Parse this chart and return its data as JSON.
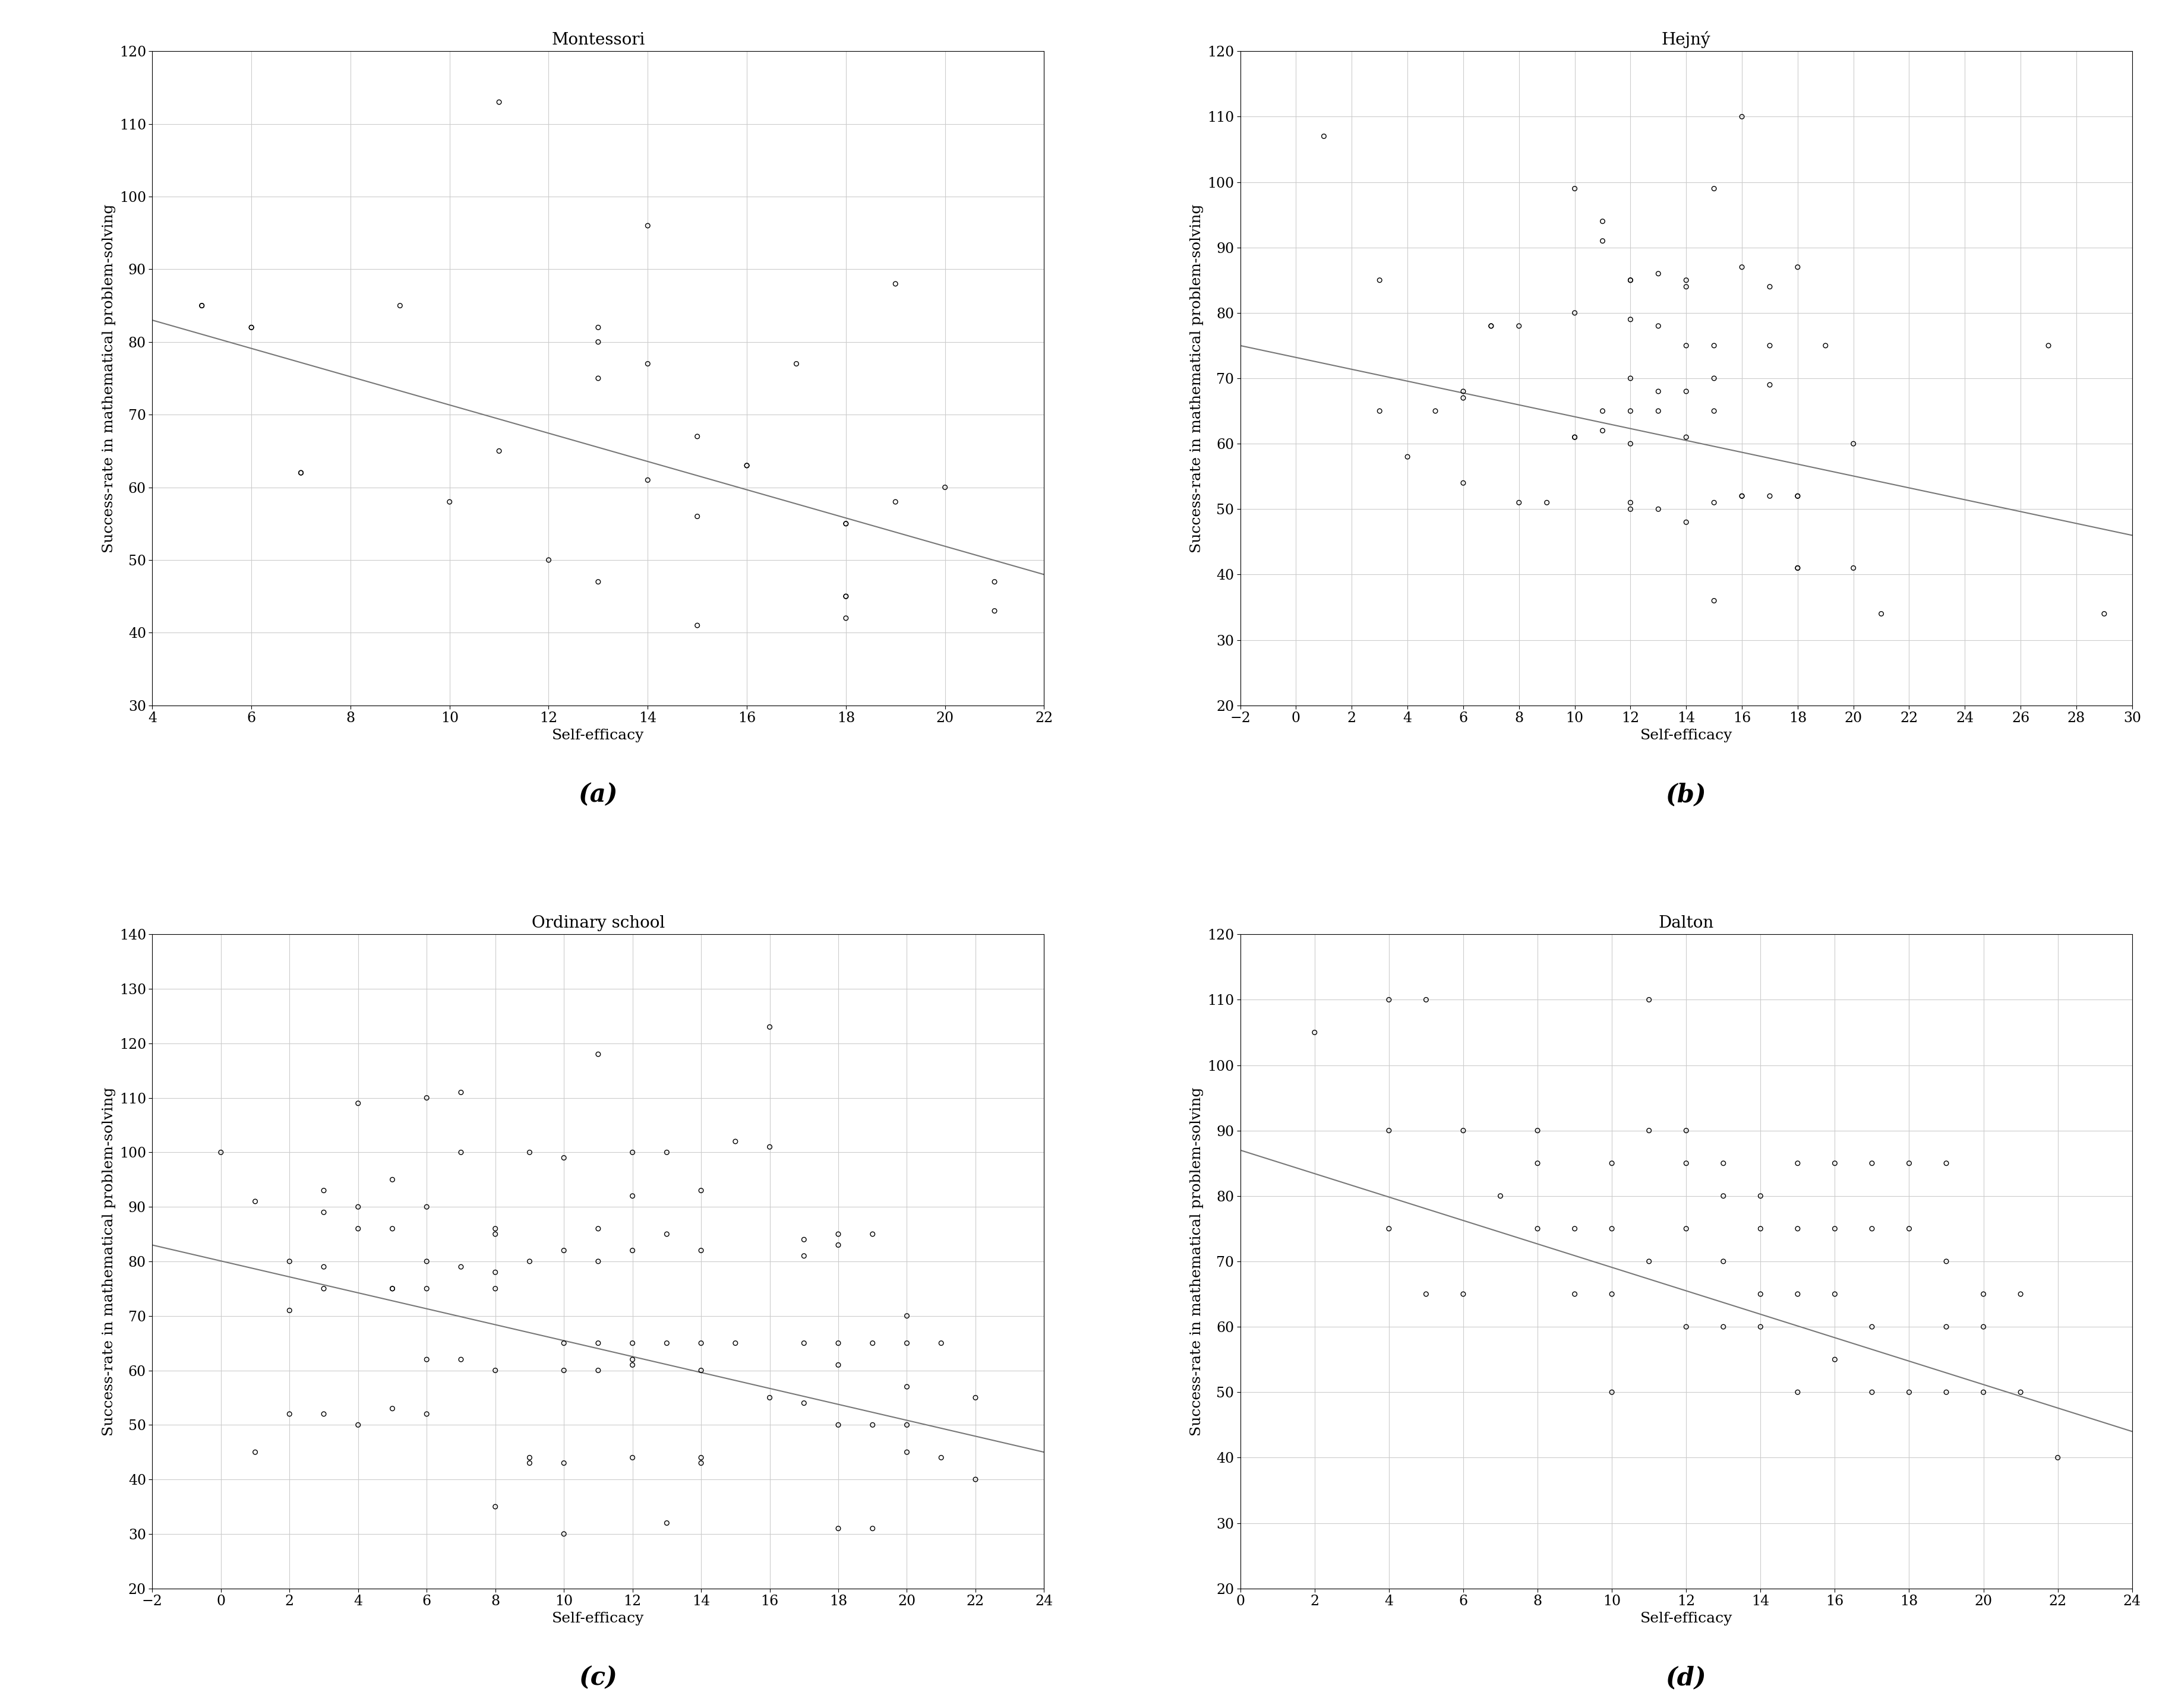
{
  "montessori": {
    "title": "Montessori",
    "x": [
      5,
      5,
      6,
      6,
      7,
      7,
      9,
      10,
      11,
      11,
      12,
      13,
      13,
      13,
      13,
      14,
      14,
      14,
      15,
      15,
      15,
      16,
      16,
      17,
      18,
      18,
      18,
      18,
      18,
      19,
      19,
      20,
      21,
      21
    ],
    "y": [
      85,
      85,
      82,
      82,
      62,
      62,
      85,
      58,
      113,
      65,
      50,
      82,
      80,
      75,
      47,
      96,
      77,
      61,
      67,
      56,
      41,
      63,
      63,
      77,
      55,
      55,
      45,
      45,
      42,
      88,
      58,
      60,
      47,
      43
    ],
    "xlim": [
      4,
      22
    ],
    "ylim": [
      30,
      120
    ],
    "xticks": [
      4,
      6,
      8,
      10,
      12,
      14,
      16,
      18,
      20,
      22
    ],
    "yticks": [
      30,
      40,
      50,
      60,
      70,
      80,
      90,
      100,
      110,
      120
    ],
    "trend_x": [
      4,
      22
    ],
    "trend_y": [
      83,
      48
    ],
    "label": "(a)"
  },
  "hejny": {
    "title": "Hejný",
    "x": [
      1,
      3,
      3,
      4,
      5,
      6,
      6,
      6,
      7,
      7,
      8,
      8,
      9,
      10,
      10,
      10,
      10,
      11,
      11,
      11,
      11,
      12,
      12,
      12,
      12,
      12,
      12,
      12,
      12,
      13,
      13,
      13,
      13,
      13,
      14,
      14,
      14,
      14,
      14,
      14,
      15,
      15,
      15,
      15,
      15,
      15,
      16,
      16,
      16,
      16,
      17,
      17,
      17,
      17,
      18,
      18,
      18,
      18,
      18,
      19,
      20,
      20,
      21,
      27,
      29
    ],
    "y": [
      107,
      85,
      65,
      58,
      65,
      68,
      67,
      54,
      78,
      78,
      78,
      51,
      51,
      99,
      80,
      61,
      61,
      94,
      91,
      65,
      62,
      85,
      85,
      79,
      70,
      65,
      60,
      51,
      50,
      86,
      78,
      68,
      65,
      50,
      85,
      84,
      75,
      68,
      61,
      48,
      99,
      75,
      70,
      65,
      51,
      36,
      110,
      87,
      52,
      52,
      84,
      75,
      69,
      52,
      87,
      52,
      52,
      41,
      41,
      75,
      60,
      41,
      34,
      75,
      34
    ],
    "xlim": [
      -2,
      30
    ],
    "ylim": [
      20,
      120
    ],
    "xticks": [
      -2,
      0,
      2,
      4,
      6,
      8,
      10,
      12,
      14,
      16,
      18,
      20,
      22,
      24,
      26,
      28,
      30
    ],
    "yticks": [
      20,
      30,
      40,
      50,
      60,
      70,
      80,
      90,
      100,
      110,
      120
    ],
    "trend_x": [
      -2,
      30
    ],
    "trend_y": [
      75,
      46
    ],
    "label": "(b)"
  },
  "ordinary": {
    "title": "Ordinary school",
    "x": [
      0,
      1,
      1,
      2,
      2,
      2,
      3,
      3,
      3,
      3,
      3,
      4,
      4,
      4,
      4,
      5,
      5,
      5,
      5,
      5,
      6,
      6,
      6,
      6,
      6,
      6,
      7,
      7,
      7,
      7,
      8,
      8,
      8,
      8,
      8,
      8,
      9,
      9,
      9,
      9,
      10,
      10,
      10,
      10,
      10,
      10,
      11,
      11,
      11,
      11,
      11,
      12,
      12,
      12,
      12,
      12,
      12,
      12,
      13,
      13,
      13,
      13,
      14,
      14,
      14,
      14,
      14,
      14,
      15,
      15,
      16,
      16,
      16,
      17,
      17,
      17,
      17,
      18,
      18,
      18,
      18,
      18,
      18,
      19,
      19,
      19,
      19,
      20,
      20,
      20,
      20,
      20,
      21,
      21,
      22,
      22
    ],
    "y": [
      100,
      91,
      45,
      80,
      71,
      52,
      93,
      89,
      79,
      75,
      52,
      109,
      90,
      86,
      50,
      95,
      86,
      75,
      75,
      53,
      110,
      90,
      80,
      75,
      62,
      52,
      111,
      100,
      79,
      62,
      86,
      85,
      78,
      75,
      60,
      35,
      100,
      80,
      44,
      43,
      99,
      82,
      65,
      60,
      43,
      30,
      118,
      86,
      80,
      65,
      60,
      100,
      92,
      82,
      65,
      62,
      61,
      44,
      100,
      85,
      65,
      32,
      93,
      82,
      65,
      60,
      44,
      43,
      102,
      65,
      123,
      101,
      55,
      84,
      81,
      65,
      54,
      85,
      83,
      65,
      61,
      50,
      31,
      85,
      65,
      50,
      31,
      70,
      65,
      57,
      50,
      45,
      65,
      44,
      55,
      40
    ],
    "xlim": [
      -2,
      24
    ],
    "ylim": [
      20,
      140
    ],
    "xticks": [
      -2,
      0,
      2,
      4,
      6,
      8,
      10,
      12,
      14,
      16,
      18,
      20,
      22,
      24
    ],
    "yticks": [
      20,
      30,
      40,
      50,
      60,
      70,
      80,
      90,
      100,
      110,
      120,
      130,
      140
    ],
    "trend_x": [
      -2,
      24
    ],
    "trend_y": [
      83,
      45
    ],
    "label": "(c)"
  },
  "dalton": {
    "title": "Dalton",
    "x": [
      2,
      4,
      4,
      4,
      5,
      5,
      6,
      6,
      7,
      8,
      8,
      8,
      9,
      9,
      10,
      10,
      10,
      10,
      11,
      11,
      11,
      12,
      12,
      12,
      12,
      13,
      13,
      13,
      13,
      14,
      14,
      14,
      14,
      15,
      15,
      15,
      15,
      16,
      16,
      16,
      16,
      17,
      17,
      17,
      17,
      18,
      18,
      18,
      19,
      19,
      19,
      19,
      20,
      20,
      20,
      21,
      21,
      22
    ],
    "y": [
      105,
      110,
      90,
      75,
      110,
      65,
      90,
      65,
      80,
      90,
      85,
      75,
      75,
      65,
      85,
      75,
      65,
      50,
      110,
      90,
      70,
      90,
      85,
      75,
      60,
      85,
      80,
      70,
      60,
      80,
      75,
      65,
      60,
      85,
      75,
      65,
      50,
      85,
      75,
      65,
      55,
      85,
      75,
      60,
      50,
      85,
      75,
      50,
      85,
      70,
      60,
      50,
      65,
      60,
      50,
      65,
      50,
      40
    ],
    "xlim": [
      0,
      24
    ],
    "ylim": [
      20,
      120
    ],
    "xticks": [
      0,
      2,
      4,
      6,
      8,
      10,
      12,
      14,
      16,
      18,
      20,
      22,
      24
    ],
    "yticks": [
      20,
      30,
      40,
      50,
      60,
      70,
      80,
      90,
      100,
      110,
      120
    ],
    "trend_x": [
      0,
      24
    ],
    "trend_y": [
      87,
      44
    ],
    "label": "(d)"
  },
  "xlabel": "Self-efficacy",
  "ylabel": "Success-rate in mathematical problem-solving",
  "scatter_color": "black",
  "line_color": "#777777",
  "background_color": "white",
  "grid_color": "#cccccc",
  "title_fontsize": 20,
  "label_fontsize": 18,
  "tick_fontsize": 17,
  "caption_fontsize": 30,
  "scatter_size": 30,
  "scatter_lw": 1.0,
  "trend_lw": 1.5
}
